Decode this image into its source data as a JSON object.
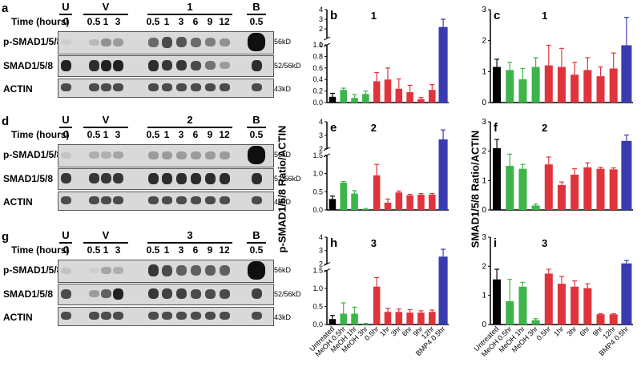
{
  "western": [
    {
      "panel": "a",
      "time_label": "Time (hours)",
      "groups": [
        {
          "name": "U",
          "times": [
            "0"
          ]
        },
        {
          "name": "V",
          "times": [
            "0.5",
            "1",
            "3"
          ]
        },
        {
          "name": "1",
          "times": [
            "0.5",
            "1",
            "3",
            "6",
            "9",
            "12"
          ]
        },
        {
          "name": "B",
          "times": [
            "0.5"
          ]
        }
      ],
      "rows": [
        {
          "label": "p-SMAD1/5/8",
          "kd": "56kD",
          "intensity": [
            0.05,
            0.15,
            0.35,
            0.3,
            0.55,
            0.7,
            0.65,
            0.55,
            0.45,
            0.35,
            1.0
          ]
        },
        {
          "label": "SMAD1/5/8",
          "kd": "52/56kD",
          "intensity": [
            0.9,
            0.85,
            0.9,
            0.9,
            0.85,
            0.8,
            0.8,
            0.7,
            0.5,
            0.3,
            0.85
          ]
        },
        {
          "label": "ACTIN",
          "kd": "43kD",
          "intensity": [
            0.7,
            0.7,
            0.7,
            0.7,
            0.7,
            0.7,
            0.7,
            0.7,
            0.7,
            0.7,
            0.7
          ]
        }
      ]
    },
    {
      "panel": "d",
      "time_label": "Time (hours)",
      "groups": [
        {
          "name": "U",
          "times": [
            "0"
          ]
        },
        {
          "name": "V",
          "times": [
            "0.5",
            "1",
            "3"
          ]
        },
        {
          "name": "2",
          "times": [
            "0.5",
            "1",
            "3",
            "6",
            "9",
            "12"
          ]
        },
        {
          "name": "B",
          "times": [
            "0.5"
          ]
        }
      ],
      "rows": [
        {
          "label": "p-SMAD1/5/8",
          "kd": "56kD",
          "intensity": [
            0.1,
            0.2,
            0.2,
            0.25,
            0.3,
            0.3,
            0.3,
            0.3,
            0.3,
            0.3,
            1.0
          ]
        },
        {
          "label": "SMAD1/5/8",
          "kd": "52/56kD",
          "intensity": [
            0.8,
            0.8,
            0.8,
            0.8,
            0.85,
            0.85,
            0.85,
            0.85,
            0.85,
            0.85,
            0.85
          ]
        },
        {
          "label": "ACTIN",
          "kd": "43kD",
          "intensity": [
            0.7,
            0.7,
            0.7,
            0.7,
            0.7,
            0.7,
            0.7,
            0.7,
            0.7,
            0.7,
            0.7
          ]
        }
      ]
    },
    {
      "panel": "g",
      "time_label": "Time (hours)",
      "groups": [
        {
          "name": "U",
          "times": [
            "0"
          ]
        },
        {
          "name": "V",
          "times": [
            "0.5",
            "1",
            "3"
          ]
        },
        {
          "name": "3",
          "times": [
            "0.5",
            "1",
            "3",
            "6",
            "9",
            "12"
          ]
        },
        {
          "name": "B",
          "times": [
            "0.5"
          ]
        }
      ],
      "rows": [
        {
          "label": "p-SMAD1/5/8",
          "kd": "56kD",
          "intensity": [
            0.1,
            0.05,
            0.25,
            0.2,
            0.8,
            0.7,
            0.6,
            0.6,
            0.6,
            0.6,
            1.0
          ]
        },
        {
          "label": "SMAD1/5/8",
          "kd": "52/56kD",
          "intensity": [
            0.7,
            0.3,
            0.6,
            0.9,
            0.8,
            0.75,
            0.75,
            0.7,
            0.7,
            0.7,
            0.75
          ]
        },
        {
          "label": "ACTIN",
          "kd": "43kD",
          "intensity": [
            0.7,
            0.7,
            0.7,
            0.7,
            0.7,
            0.7,
            0.7,
            0.7,
            0.7,
            0.7,
            0.7
          ]
        }
      ]
    }
  ],
  "ylabels": {
    "left": "p-SMAD1/5/8 Ratio/ACTIN",
    "right": "SMAD1/5/8 Ratio/ACTIN"
  },
  "colors": {
    "untreated": "#000000",
    "meoh": "#3db54a",
    "compound": "#e0343d",
    "bmp4": "#3b3bb0"
  },
  "chart_data": [
    {
      "panel": "b",
      "title": "1",
      "type": "bar",
      "categories": [
        "Untreated",
        "MeOH 0.5hr",
        "MeOH 1hr",
        "MeOH 3hr",
        "0.5hr",
        "1hr",
        "3hr",
        "6hr",
        "9hr",
        "12hr",
        "BMP4 0.5hr"
      ],
      "values": [
        0.1,
        0.22,
        0.08,
        0.15,
        0.37,
        0.4,
        0.24,
        0.18,
        0.06,
        0.22,
        2.2
      ],
      "errors": [
        0.06,
        0.03,
        0.06,
        0.05,
        0.15,
        0.2,
        0.17,
        0.12,
        0.03,
        0.09,
        0.8
      ],
      "broken_axis": true,
      "ticks_lower": [
        "0.0",
        "0.2",
        "0.4",
        "0.6",
        "0.8",
        "1.0"
      ],
      "ticks_upper": [
        "1",
        "2",
        "3",
        "4"
      ]
    },
    {
      "panel": "c",
      "title": "1",
      "type": "bar",
      "categories": [
        "Untreated",
        "MeOH 0.5hr",
        "MeOH 1hr",
        "MeOH 3hr",
        "0.5hr",
        "1hr",
        "3hr",
        "6hr",
        "9hr",
        "12hr",
        "BMP4 0.5hr"
      ],
      "values": [
        1.15,
        1.05,
        0.75,
        1.15,
        1.2,
        1.15,
        0.9,
        1.05,
        0.85,
        1.1,
        1.85
      ],
      "errors": [
        0.25,
        0.25,
        0.35,
        0.3,
        0.65,
        0.6,
        0.4,
        0.4,
        0.3,
        0.5,
        0.9
      ],
      "broken_axis": false,
      "ticks": [
        "0",
        "1",
        "2",
        "3"
      ],
      "ylim": [
        0,
        3
      ]
    },
    {
      "panel": "e",
      "title": "2",
      "type": "bar",
      "categories": [
        "Untreated",
        "MeOH 0.5hr",
        "MeOH 1hr",
        "MeOH 3hr",
        "0.5hr",
        "1hr",
        "3hr",
        "6hr",
        "9hr",
        "12hr",
        "BMP4 0.5hr"
      ],
      "values": [
        0.3,
        0.75,
        0.45,
        0.02,
        0.95,
        0.2,
        0.48,
        0.4,
        0.42,
        0.42,
        2.7
      ],
      "errors": [
        0.08,
        0.03,
        0.08,
        0.02,
        0.3,
        0.1,
        0.04,
        0.03,
        0.03,
        0.03,
        0.7
      ],
      "broken_axis": true,
      "ticks_lower": [
        "0.0",
        "0.5",
        "1.0",
        "1.5"
      ],
      "ticks_upper": [
        "2",
        "3",
        "4"
      ]
    },
    {
      "panel": "f",
      "title": "2",
      "type": "bar",
      "categories": [
        "Untreated",
        "MeOH 0.5hr",
        "MeOH 1hr",
        "MeOH 3hr",
        "0.5hr",
        "1hr",
        "3hr",
        "6hr",
        "9hr",
        "12hr",
        "BMP4 0.5hr"
      ],
      "values": [
        2.1,
        1.5,
        1.4,
        0.15,
        1.55,
        0.85,
        1.2,
        1.45,
        1.4,
        1.38,
        2.35
      ],
      "errors": [
        0.3,
        0.4,
        0.15,
        0.05,
        0.25,
        0.1,
        0.2,
        0.15,
        0.05,
        0.05,
        0.2
      ],
      "broken_axis": false,
      "ticks": [
        "0",
        "1",
        "2",
        "3"
      ],
      "ylim": [
        0,
        3
      ]
    },
    {
      "panel": "h",
      "title": "3",
      "type": "bar",
      "categories": [
        "Untreated",
        "MeOH 0.5hr",
        "MeOH 1hr",
        "MeOH 3hr",
        "0.5hr",
        "1hr",
        "3hr",
        "6hr",
        "9hr",
        "12hr",
        "BMP4 0.5hr"
      ],
      "values": [
        0.15,
        0.3,
        0.3,
        0.02,
        1.05,
        0.35,
        0.35,
        0.33,
        0.33,
        0.35,
        2.55
      ],
      "errors": [
        0.1,
        0.3,
        0.18,
        0.01,
        0.25,
        0.1,
        0.08,
        0.08,
        0.05,
        0.05,
        0.55
      ],
      "broken_axis": true,
      "ticks_lower": [
        "0.0",
        "0.5",
        "1.0",
        "1.5"
      ],
      "ticks_upper": [
        "2",
        "3",
        "4"
      ]
    },
    {
      "panel": "i",
      "title": "3",
      "type": "bar",
      "categories": [
        "Untreated",
        "MeOH 0.5hr",
        "MeOH 1hr",
        "MeOH 3hr",
        "0.5hr",
        "1hr",
        "3hr",
        "6hr",
        "9hr",
        "12hr",
        "BMP4 0.5hr"
      ],
      "values": [
        1.55,
        0.8,
        1.3,
        0.15,
        1.75,
        1.4,
        1.3,
        1.25,
        0.35,
        0.35,
        2.1
      ],
      "errors": [
        0.35,
        0.75,
        0.15,
        0.05,
        0.15,
        0.25,
        0.2,
        0.15,
        0.02,
        0.02,
        0.1
      ],
      "broken_axis": false,
      "ticks": [
        "0",
        "1",
        "2",
        "3"
      ],
      "ylim": [
        0,
        3
      ]
    }
  ]
}
